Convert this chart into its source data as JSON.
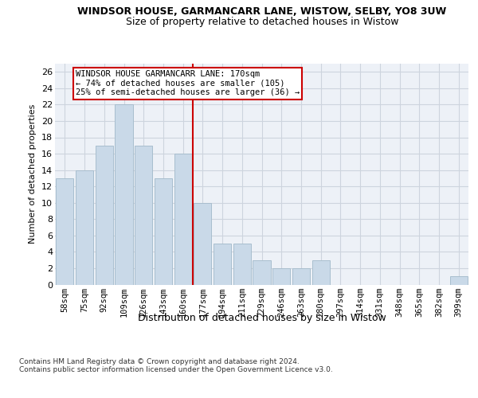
{
  "title": "WINDSOR HOUSE, GARMANCARR LANE, WISTOW, SELBY, YO8 3UW",
  "subtitle": "Size of property relative to detached houses in Wistow",
  "xlabel": "Distribution of detached houses by size in Wistow",
  "ylabel": "Number of detached properties",
  "categories": [
    "58sqm",
    "75sqm",
    "92sqm",
    "109sqm",
    "126sqm",
    "143sqm",
    "160sqm",
    "177sqm",
    "194sqm",
    "211sqm",
    "229sqm",
    "246sqm",
    "263sqm",
    "280sqm",
    "297sqm",
    "314sqm",
    "331sqm",
    "348sqm",
    "365sqm",
    "382sqm",
    "399sqm"
  ],
  "values": [
    13,
    14,
    17,
    22,
    17,
    13,
    16,
    10,
    5,
    5,
    3,
    2,
    2,
    3,
    0,
    0,
    0,
    0,
    0,
    0,
    1
  ],
  "bar_color": "#c9d9e8",
  "bar_edge_color": "#a8bece",
  "ylim": [
    0,
    27
  ],
  "yticks": [
    0,
    2,
    4,
    6,
    8,
    10,
    12,
    14,
    16,
    18,
    20,
    22,
    24,
    26
  ],
  "vline_x": 6.5,
  "vline_color": "#cc0000",
  "annotation_text": "WINDSOR HOUSE GARMANCARR LANE: 170sqm\n← 74% of detached houses are smaller (105)\n25% of semi-detached houses are larger (36) →",
  "annotation_box_edge": "#cc0000",
  "footer": "Contains HM Land Registry data © Crown copyright and database right 2024.\nContains public sector information licensed under the Open Government Licence v3.0.",
  "bg_color": "#edf1f7",
  "grid_color": "#cdd4de"
}
